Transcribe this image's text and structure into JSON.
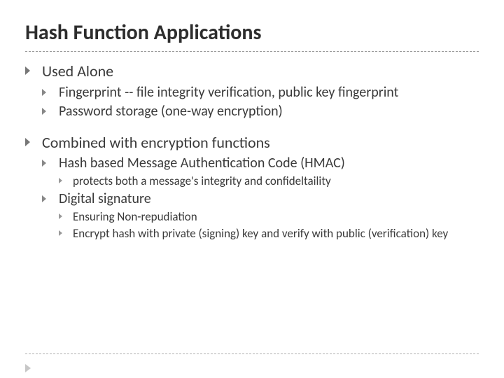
{
  "title": "Hash Function Applications",
  "colors": {
    "background": "#ffffff",
    "title_text": "#2d2d2d",
    "body_text": "#3a3a3a",
    "divider": "#9a9a9a",
    "footer_divider": "#b0b0b0",
    "footer_arrow": "#c7c7c7",
    "bullet_l1": "#777777",
    "bullet_l2": "#888888",
    "bullet_l3": "#999999",
    "bullet_l4": "#aaaaaa"
  },
  "typography": {
    "title_fontsize_pt": 30,
    "level_fontsizes_pt": [
      22,
      20,
      17,
      16
    ],
    "font_family": "Calibri",
    "title_weight": "bold"
  },
  "bullets": [
    {
      "text": "Used Alone",
      "children": [
        {
          "text": "Fingerprint -- file integrity verification, public key fingerprint"
        },
        {
          "text": "Password storage (one-way encryption)"
        }
      ]
    },
    {
      "text": "Combined with encryption functions",
      "children": [
        {
          "text": "Hash based Message Authentication Code (HMAC)",
          "children": [
            {
              "text": "protects both a message's integrity and confideltaility"
            }
          ]
        },
        {
          "text": "Digital signature",
          "children": [
            {
              "text": "Ensuring Non-repudiation"
            },
            {
              "text": "Encrypt hash with private (signing) key and verify with public (verification) key"
            }
          ]
        }
      ]
    }
  ]
}
